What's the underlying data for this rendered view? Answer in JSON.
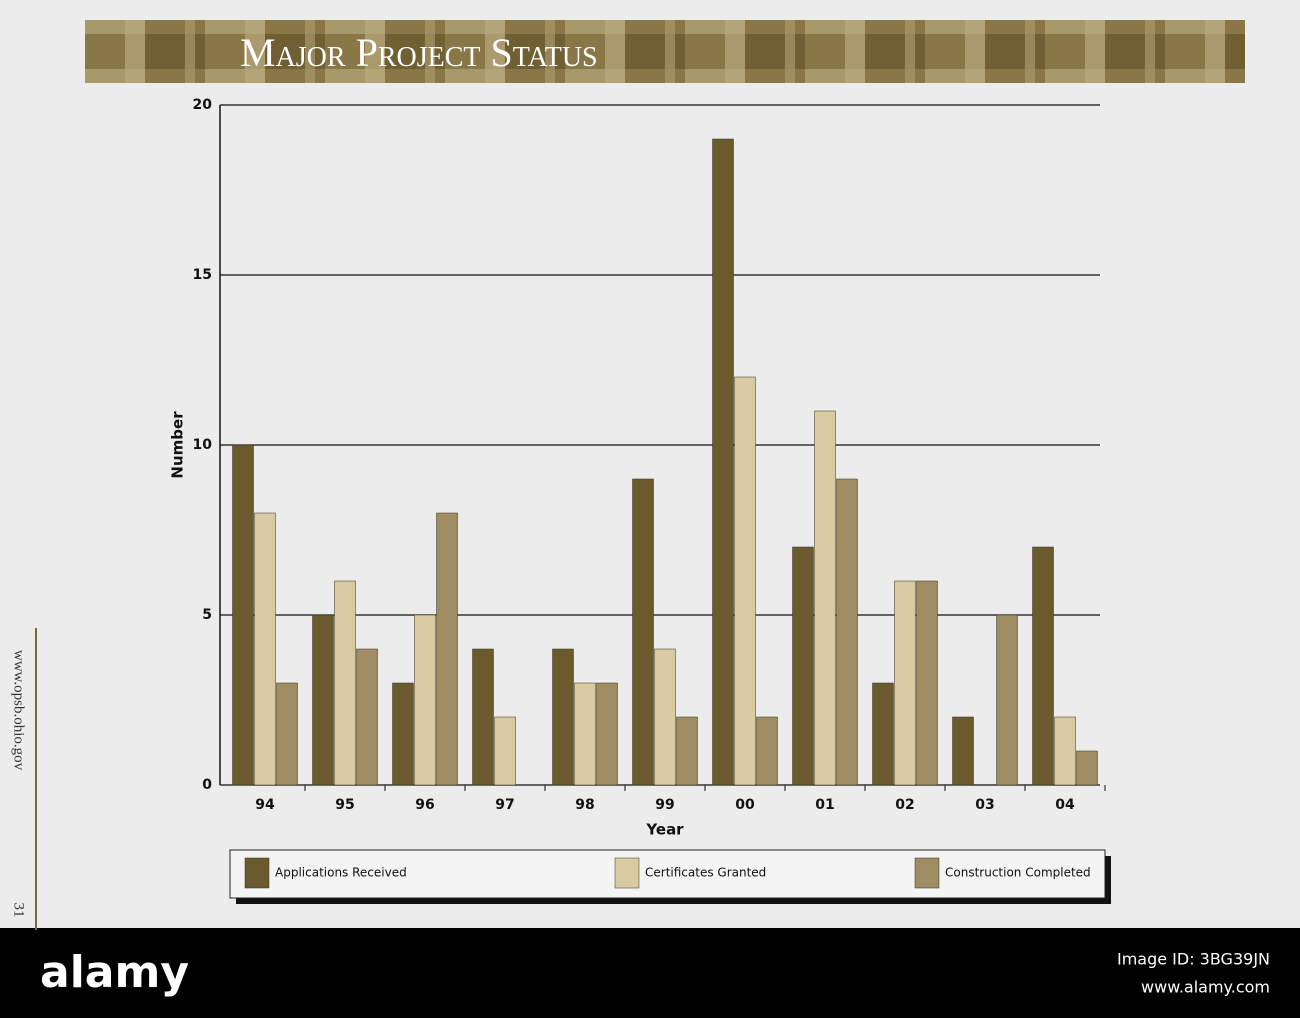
{
  "chart_data": {
    "type": "bar",
    "title": "Major Project Status",
    "x_label": "Year",
    "y_label": "Number",
    "categories": [
      "94",
      "95",
      "96",
      "97",
      "98",
      "99",
      "00",
      "01",
      "02",
      "03",
      "04"
    ],
    "series": [
      {
        "name": "Applications Received",
        "color": "#6b5a2e",
        "values": [
          10,
          5,
          3,
          4,
          4,
          9,
          19,
          7,
          3,
          2,
          7
        ]
      },
      {
        "name": "Certificates Granted",
        "color": "#d8cba2",
        "values": [
          8,
          6,
          5,
          2,
          3,
          4,
          12,
          11,
          6,
          0,
          2
        ]
      },
      {
        "name": "Construction Completed",
        "color": "#a08c62",
        "values": [
          3,
          4,
          8,
          0,
          3,
          2,
          2,
          9,
          6,
          5,
          1
        ]
      }
    ],
    "ylim": [
      0,
      20
    ],
    "yticks": [
      0,
      5,
      10,
      15,
      20
    ],
    "grid": true
  },
  "page": {
    "side_url": "www.opsb.ohio.gov",
    "page_number": "31"
  },
  "watermark": {
    "logo": "alamy",
    "image_id": "Image ID: 3BG39JN",
    "url": "www.alamy.com"
  }
}
